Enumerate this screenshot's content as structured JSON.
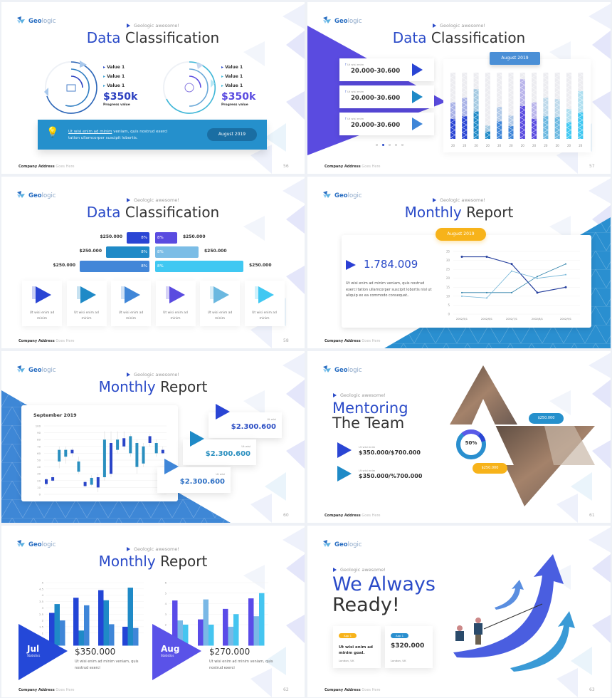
{
  "brand": {
    "name_bold": "Geo",
    "name_light": "logic"
  },
  "common": {
    "tagline": "Geologic awesome!",
    "footer_bold": "Company Address",
    "footer_light": "Goes Here"
  },
  "colors": {
    "blue": "#2b4bc8",
    "royal": "#2a45d4",
    "teal": "#1f8ac7",
    "purple": "#5a4be0",
    "sky": "#40c8f2",
    "orange": "#f7b31a"
  },
  "slides": {
    "s56": {
      "title_a": "Data",
      "title_b": "Classification",
      "page": "56",
      "left": {
        "values": [
          "Value 1",
          "Value 1",
          "Value 1"
        ],
        "amount": "$350k",
        "caption": "Progress value",
        "icon": "thumbs-up-icon"
      },
      "right": {
        "values": [
          "Value 1",
          "Value 1",
          "Value 1"
        ],
        "amount": "$350k",
        "caption": "Progress value",
        "icon": "pie-chart-icon"
      },
      "banner": {
        "link": "Ut wisi enim ad minim",
        "text1": " veniam, quis nostrud exerci",
        "text2": "tation ullamcorper suscipit lobortis.",
        "button": "August 2019"
      }
    },
    "s57": {
      "title_a": "Data",
      "title_b": "Classification",
      "page": "57",
      "badge": "August 2019",
      "cards": [
        {
          "label": "Ut wisi enim",
          "value": "20.000-30.600"
        },
        {
          "label": "Ut wisi enim",
          "value": "20.000-30.600"
        },
        {
          "label": "Ut wisi enim",
          "value": "20.000-30.600"
        }
      ],
      "active_dot": 1,
      "dot_count": 5
    },
    "s58": {
      "title_a": "Data",
      "title_b": "Classification",
      "page": "58",
      "rows": [
        {
          "left_amount": "$250.000",
          "left_pct": "8%",
          "right_pct": "8%",
          "right_amount": "$250.000"
        },
        {
          "left_amount": "$250.000",
          "left_pct": "8%",
          "right_pct": "8%",
          "right_amount": "$250.000"
        },
        {
          "left_amount": "$250.000",
          "left_pct": "8%",
          "right_pct": "8%",
          "right_amount": "$250.000"
        }
      ],
      "cards": [
        "Ut wisi enim ad minim",
        "Ut wisi enim ad minim",
        "Ut wisi enim ad minim",
        "Ut wisi enim ad minim",
        "Ut wisi enim ad minim",
        "Ut wisi enim ad minim"
      ]
    },
    "s59": {
      "title_a": "Monthly",
      "title_b": "Report",
      "page": "",
      "badge": "August 2019",
      "number": "1.784.009",
      "paragraph": "Ut wisi enim ad minim veniam, quis nostrud exerci tation ullamcorper suscipit lobortis nisl ut aliquip ex ea commodo consequat.."
    },
    "s60": {
      "title_a": "Monthly",
      "title_b": "Report",
      "page": "60",
      "chart_label": "September 2019",
      "cards": [
        {
          "label": "Ut wisi",
          "value": "$2.300.600"
        },
        {
          "label": "Ut wisi",
          "value": "$2.300.600"
        },
        {
          "label": "Ut wisi",
          "value": "$2.300.600"
        }
      ]
    },
    "s61": {
      "title_a": "Mentoring",
      "title_b": "The Team",
      "page": "61",
      "items": [
        {
          "label": "Ut wisi enim",
          "value": "$350.000/$700.000"
        },
        {
          "label": "Ut wisi enim",
          "value": "$350.000/%700.000"
        }
      ],
      "donut": "50%",
      "donut_value": 0.5,
      "badge_blue": "$250.000",
      "badge_orange": "$250.000"
    },
    "s62": {
      "title_a": "Monthly",
      "title_b": "Report",
      "page": "62",
      "left": {
        "month": "Jul",
        "sub": "Statistics",
        "amount": "$350.000",
        "text": "Ut wisi enim ad minim veniam, quis nostrud exerci"
      },
      "right": {
        "month": "Aug",
        "sub": "Statistics",
        "amount": "$270.000",
        "text": "Ut wisi enim ad minim veniam, quis nostrud exerci"
      }
    },
    "s63": {
      "title_a": "We Always",
      "title_b": "Ready!",
      "page": "63",
      "cards": [
        {
          "badge": "App 1",
          "text": "Ut wisi enim ad minim goal.",
          "loc": "London, UK"
        },
        {
          "badge": "App 1",
          "text": "$320.000",
          "loc": "London, UK"
        }
      ]
    }
  },
  "chart_data": [
    {
      "type": "bar",
      "slide": "57",
      "categories": [
        "20",
        "20",
        "20",
        "20",
        "20",
        "20",
        "20",
        "20",
        "20",
        "20",
        "20",
        "20"
      ],
      "values": [
        0.55,
        0.62,
        0.75,
        0.2,
        0.48,
        0.35,
        0.9,
        0.55,
        0.62,
        0.6,
        0.45,
        0.72
      ]
    },
    {
      "type": "line",
      "slide": "59",
      "x": [
        "2002/5/1",
        "2002/6/1",
        "2002/7/1",
        "2002/8/1",
        "2002/9/1"
      ],
      "ylim": [
        0,
        35
      ],
      "yticks": [
        0,
        5,
        10,
        15,
        20,
        25,
        30,
        35
      ],
      "series": [
        {
          "values": [
            32,
            32,
            28,
            12,
            15
          ],
          "color": "#27409e"
        },
        {
          "values": [
            12,
            12,
            12,
            21,
            28
          ],
          "color": "#2b7fa8"
        },
        {
          "values": [
            10,
            9,
            24,
            20,
            22
          ],
          "color": "#6fb3d6"
        }
      ]
    },
    {
      "type": "candlestick",
      "slide": "60",
      "ylim": [
        0,
        100
      ],
      "yticks": [
        0,
        10,
        20,
        30,
        40,
        50,
        60,
        70,
        80,
        90,
        100
      ],
      "candles": [
        [
          15,
          22,
          12,
          24
        ],
        [
          20,
          25,
          18,
          30
        ],
        [
          48,
          65,
          38,
          70
        ],
        [
          55,
          65,
          45,
          70
        ],
        [
          60,
          65,
          55,
          68
        ],
        [
          33,
          48,
          30,
          55
        ],
        [
          12,
          18,
          10,
          20
        ],
        [
          14,
          24,
          12,
          28
        ],
        [
          10,
          25,
          3,
          30
        ],
        [
          25,
          80,
          20,
          92
        ],
        [
          30,
          75,
          25,
          92
        ],
        [
          65,
          80,
          60,
          92
        ],
        [
          70,
          82,
          65,
          92
        ],
        [
          60,
          85,
          55,
          88
        ],
        [
          40,
          75,
          30,
          80
        ],
        [
          45,
          70,
          40,
          75
        ],
        [
          75,
          85,
          70,
          88
        ],
        [
          60,
          75,
          55,
          80
        ],
        [
          60,
          65,
          58,
          70
        ]
      ]
    },
    {
      "type": "bar",
      "slide": "62-left",
      "categories": [
        "1",
        "2",
        "3",
        "4"
      ],
      "ylim": [
        0,
        5
      ],
      "yticks": [
        "1",
        "1.5",
        "2",
        "2.5",
        "3",
        "3.5",
        "4",
        "4.5",
        "5"
      ],
      "series": [
        {
          "values": [
            2.6,
            3.8,
            4.4,
            1.5
          ],
          "color": "#2345d6"
        },
        {
          "values": [
            3.3,
            1.2,
            3.6,
            4.6
          ],
          "color": "#1f8ac7"
        },
        {
          "values": [
            2,
            3.2,
            1.7,
            1.4
          ],
          "color": "#3f86d8"
        }
      ]
    },
    {
      "type": "bar",
      "slide": "62-right",
      "categories": [
        "1",
        "2",
        "3",
        "4"
      ],
      "ylim": [
        0,
        6
      ],
      "yticks": [
        "2",
        "3",
        "4",
        "5",
        "6"
      ],
      "series": [
        {
          "values": [
            4.3,
            2.5,
            3.5,
            4.5
          ],
          "color": "#5a4be8"
        },
        {
          "values": [
            2.4,
            4.4,
            1.8,
            2.8
          ],
          "color": "#7ab8e6"
        },
        {
          "values": [
            2,
            2,
            3,
            5
          ],
          "color": "#45c5f0"
        }
      ]
    }
  ]
}
